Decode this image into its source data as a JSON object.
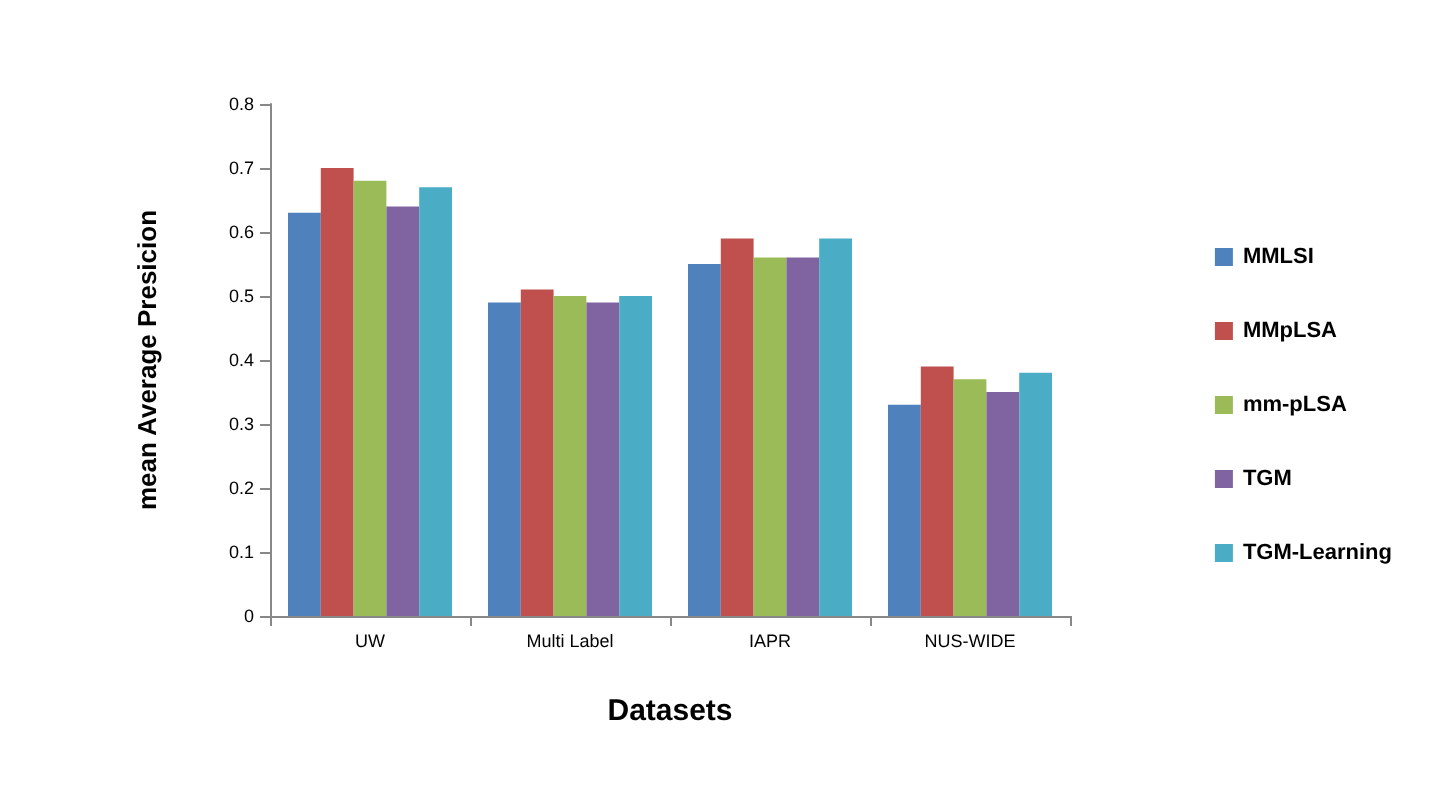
{
  "chart_data": {
    "type": "bar",
    "xlabel": "Datasets",
    "ylabel": "mean Average Presicion",
    "categories": [
      "UW",
      "Multi Label",
      "IAPR",
      "NUS-WIDE"
    ],
    "series": [
      {
        "name": "MMLSI",
        "color": "#4f81bd",
        "values": [
          0.63,
          0.49,
          0.55,
          0.33
        ]
      },
      {
        "name": "MMpLSA",
        "color": "#c0504d",
        "values": [
          0.7,
          0.51,
          0.59,
          0.39
        ]
      },
      {
        "name": "mm-pLSA",
        "color": "#9bbb59",
        "values": [
          0.68,
          0.5,
          0.56,
          0.37
        ]
      },
      {
        "name": "TGM",
        "color": "#8064a2",
        "values": [
          0.64,
          0.49,
          0.56,
          0.35
        ]
      },
      {
        "name": "TGM-Learning",
        "color": "#4bacc6",
        "values": [
          0.67,
          0.5,
          0.59,
          0.38
        ]
      }
    ],
    "ylim": [
      0,
      0.8
    ],
    "yticks": [
      0,
      0.1,
      0.2,
      0.3,
      0.4,
      0.5,
      0.6,
      0.7,
      0.8
    ],
    "grid": false,
    "legend": "right"
  }
}
